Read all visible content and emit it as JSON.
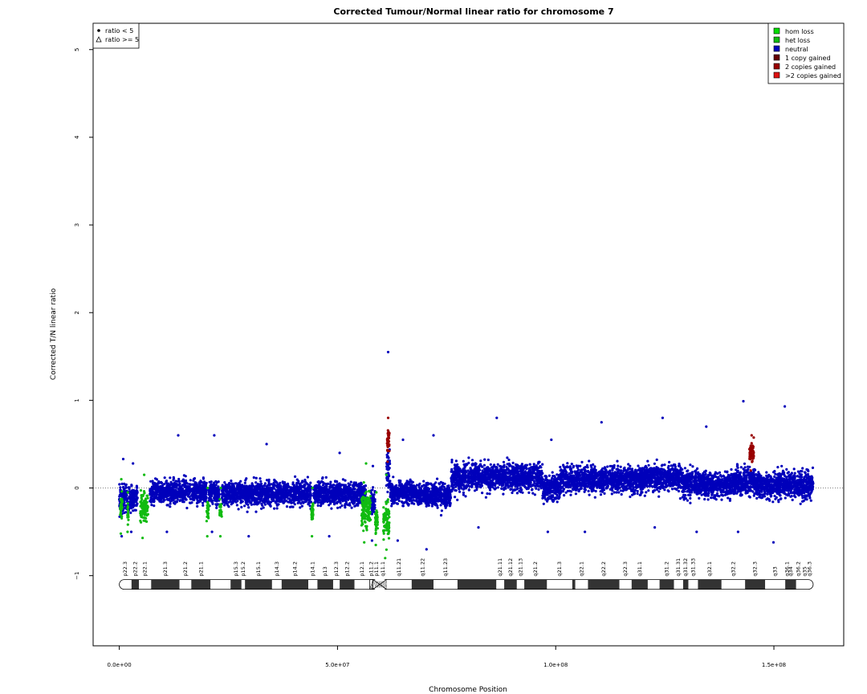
{
  "chart_data": {
    "type": "scatter",
    "title": "Corrected Tumour/Normal linear ratio for chromosome  7",
    "xlabel": "Chromosome Position",
    "ylabel": "Corrected T/N linear ratio",
    "xlim": [
      -6000000,
      166000000
    ],
    "ylim": [
      -1.8,
      5.3
    ],
    "x_ticks": [
      {
        "value": 0,
        "label": "0.0e+00"
      },
      {
        "value": 50000000,
        "label": "5.0e+07"
      },
      {
        "value": 100000000,
        "label": "1.0e+08"
      },
      {
        "value": 150000000,
        "label": "1.5e+08"
      }
    ],
    "y_ticks": [
      {
        "value": -1,
        "label": "−1"
      },
      {
        "value": 0,
        "label": "0"
      },
      {
        "value": 1,
        "label": "1"
      },
      {
        "value": 2,
        "label": "2"
      },
      {
        "value": 3,
        "label": "3"
      },
      {
        "value": 4,
        "label": "4"
      },
      {
        "value": 5,
        "label": "5"
      }
    ],
    "reference_line": 0,
    "colors": {
      "hom_loss": "#00dd00",
      "het_loss": "#11bb11",
      "neutral": "#0000bb",
      "gain1": "#660000",
      "gain2": "#990000",
      "gain_more": "#dd1111"
    },
    "shape_legend": {
      "position": "top-left",
      "items": [
        {
          "symbol": "dot",
          "label": "ratio < 5"
        },
        {
          "symbol": "triangle",
          "label": "ratio >= 5"
        }
      ]
    },
    "color_legend": {
      "position": "top-right",
      "items": [
        {
          "label": "hom loss",
          "color": "#00dd00"
        },
        {
          "label": "het loss",
          "color": "#11bb11"
        },
        {
          "label": "neutral",
          "color": "#0000bb"
        },
        {
          "label": "1 copy gained",
          "color": "#660000"
        },
        {
          "label": "2 copies gained",
          "color": "#990000"
        },
        {
          "label": ">2 copies gained",
          "color": "#dd1111"
        }
      ]
    },
    "series": [
      {
        "name": "neutral",
        "color": "#0000bb",
        "segments": [
          {
            "x0": 0,
            "x1": 1800000,
            "mean": -0.13,
            "sd": 0.14,
            "min": -0.55,
            "max": 0.33
          },
          {
            "x0": 2100000,
            "x1": 4200000,
            "mean": -0.12,
            "sd": 0.13,
            "min": -0.5,
            "max": 0.28
          },
          {
            "x0": 7000000,
            "x1": 20000000,
            "mean": -0.04,
            "sd": 0.13,
            "min": -0.5,
            "max": 0.6
          },
          {
            "x0": 20500000,
            "x1": 23000000,
            "mean": -0.06,
            "sd": 0.13,
            "min": -0.5,
            "max": 0.6
          },
          {
            "x0": 23500000,
            "x1": 44000000,
            "mean": -0.06,
            "sd": 0.13,
            "min": -0.55,
            "max": 0.5
          },
          {
            "x0": 44500000,
            "x1": 56500000,
            "mean": -0.06,
            "sd": 0.13,
            "min": -0.55,
            "max": 0.4
          },
          {
            "x0": 57600000,
            "x1": 58600000,
            "mean": -0.15,
            "sd": 0.15,
            "min": -0.6,
            "max": 0.25
          },
          {
            "x0": 61200000,
            "x1": 62000000,
            "mean": 0.2,
            "sd": 0.25,
            "min": -0.3,
            "max": 1.55
          },
          {
            "x0": 62000000,
            "x1": 68000000,
            "mean": -0.05,
            "sd": 0.13,
            "min": -0.6,
            "max": 0.55
          },
          {
            "x0": 68000000,
            "x1": 76000000,
            "mean": -0.08,
            "sd": 0.13,
            "min": -0.7,
            "max": 0.6
          },
          {
            "x0": 76000000,
            "x1": 97000000,
            "mean": 0.13,
            "sd": 0.15,
            "min": -0.45,
            "max": 0.8
          },
          {
            "x0": 97000000,
            "x1": 101000000,
            "mean": 0.0,
            "sd": 0.14,
            "min": -0.5,
            "max": 0.55
          },
          {
            "x0": 101000000,
            "x1": 120000000,
            "mean": 0.1,
            "sd": 0.14,
            "min": -0.5,
            "max": 0.75
          },
          {
            "x0": 120000000,
            "x1": 129000000,
            "mean": 0.12,
            "sd": 0.14,
            "min": -0.45,
            "max": 0.8
          },
          {
            "x0": 129000000,
            "x1": 140000000,
            "mean": 0.04,
            "sd": 0.14,
            "min": -0.5,
            "max": 0.7
          },
          {
            "x0": 140000000,
            "x1": 146000000,
            "mean": 0.08,
            "sd": 0.15,
            "min": -0.5,
            "max": 0.99
          },
          {
            "x0": 146000000,
            "x1": 159000000,
            "mean": 0.03,
            "sd": 0.14,
            "min": -0.62,
            "max": 0.93
          }
        ]
      },
      {
        "name": "het loss",
        "color": "#11bb11",
        "segments": [
          {
            "x0": 200000,
            "x1": 700000,
            "mean": -0.2,
            "sd": 0.15,
            "min": -0.52,
            "max": 0.1
          },
          {
            "x0": 1800000,
            "x1": 2100000,
            "mean": -0.3,
            "sd": 0.1,
            "min": -0.5,
            "max": -0.05
          },
          {
            "x0": 4800000,
            "x1": 6600000,
            "mean": -0.23,
            "sd": 0.17,
            "min": -0.57,
            "max": 0.15
          },
          {
            "x0": 20000000,
            "x1": 20500000,
            "mean": -0.25,
            "sd": 0.12,
            "min": -0.55,
            "max": 0.0
          },
          {
            "x0": 23000000,
            "x1": 23500000,
            "mean": -0.25,
            "sd": 0.12,
            "min": -0.55,
            "max": 0.0
          },
          {
            "x0": 44000000,
            "x1": 44500000,
            "mean": -0.25,
            "sd": 0.12,
            "min": -0.55,
            "max": 0.0
          },
          {
            "x0": 55500000,
            "x1": 57600000,
            "mean": -0.25,
            "sd": 0.2,
            "min": -0.62,
            "max": 0.28
          },
          {
            "x0": 58600000,
            "x1": 59200000,
            "mean": -0.35,
            "sd": 0.15,
            "min": -0.65,
            "max": -0.05
          },
          {
            "x0": 60500000,
            "x1": 61900000,
            "mean": -0.38,
            "sd": 0.2,
            "min": -0.8,
            "max": 0.15
          }
        ]
      },
      {
        "name": "2 copies gained",
        "color": "#990000",
        "segments": [
          {
            "x0": 61300000,
            "x1": 61900000,
            "mean": 0.55,
            "sd": 0.12,
            "min": 0.3,
            "max": 0.8
          },
          {
            "x0": 144400000,
            "x1": 145400000,
            "mean": 0.4,
            "sd": 0.1,
            "min": 0.2,
            "max": 0.6
          }
        ]
      }
    ],
    "ideogram": {
      "y": -1.1,
      "x_end": 159000000,
      "centromere": 59700000,
      "bands": [
        {
          "name": "p22.3",
          "start": 0,
          "end": 2800000,
          "stain": "gneg"
        },
        {
          "name": "p22.2",
          "start": 2800000,
          "end": 4500000,
          "stain": "gpos"
        },
        {
          "name": "p22.1",
          "start": 4500000,
          "end": 7300000,
          "stain": "gneg"
        },
        {
          "name": "p21.3",
          "start": 7300000,
          "end": 13800000,
          "stain": "gpos"
        },
        {
          "name": "p21.2",
          "start": 13800000,
          "end": 16500000,
          "stain": "gneg"
        },
        {
          "name": "p21.1",
          "start": 16500000,
          "end": 20900000,
          "stain": "gpos"
        },
        {
          "name": "",
          "start": 20900000,
          "end": 25500000,
          "stain": "gneg"
        },
        {
          "name": "p15.3",
          "start": 25500000,
          "end": 28000000,
          "stain": "gpos"
        },
        {
          "name": "p15.2",
          "start": 28000000,
          "end": 28800000,
          "stain": "gneg"
        },
        {
          "name": "p15.1",
          "start": 28800000,
          "end": 35000000,
          "stain": "gpos"
        },
        {
          "name": "p14.3",
          "start": 35000000,
          "end": 37200000,
          "stain": "gneg"
        },
        {
          "name": "p14.2",
          "start": 37200000,
          "end": 43300000,
          "stain": "gpos"
        },
        {
          "name": "p14.1",
          "start": 43300000,
          "end": 45400000,
          "stain": "gneg"
        },
        {
          "name": "p13",
          "start": 45400000,
          "end": 49000000,
          "stain": "gpos"
        },
        {
          "name": "p12.3",
          "start": 49000000,
          "end": 50500000,
          "stain": "gneg"
        },
        {
          "name": "p12.2",
          "start": 50500000,
          "end": 53900000,
          "stain": "gpos"
        },
        {
          "name": "p12.1",
          "start": 53900000,
          "end": 57400000,
          "stain": "gneg"
        },
        {
          "name": "p11.2",
          "start": 57400000,
          "end": 58100000,
          "stain": "stalk"
        },
        {
          "name": "p11.1",
          "start": 58100000,
          "end": 59700000,
          "stain": "acen"
        },
        {
          "name": "q11.1",
          "start": 59700000,
          "end": 61200000,
          "stain": "acen"
        },
        {
          "name": "q11.21",
          "start": 61200000,
          "end": 67000000,
          "stain": "gneg"
        },
        {
          "name": "q11.22",
          "start": 67000000,
          "end": 72000000,
          "stain": "gpos"
        },
        {
          "name": "q11.23",
          "start": 72000000,
          "end": 77500000,
          "stain": "gneg"
        },
        {
          "name": "",
          "start": 77500000,
          "end": 86400000,
          "stain": "gpos"
        },
        {
          "name": "q21.11",
          "start": 86400000,
          "end": 88200000,
          "stain": "gneg"
        },
        {
          "name": "q21.12",
          "start": 88200000,
          "end": 91100000,
          "stain": "gpos"
        },
        {
          "name": "q21.13",
          "start": 91100000,
          "end": 92800000,
          "stain": "gneg"
        },
        {
          "name": "q21.2",
          "start": 92800000,
          "end": 98000000,
          "stain": "gpos"
        },
        {
          "name": "q21.3",
          "start": 98000000,
          "end": 103800000,
          "stain": "gneg"
        },
        {
          "name": "",
          "start": 103800000,
          "end": 104500000,
          "stain": "gpos"
        },
        {
          "name": "q22.1",
          "start": 104500000,
          "end": 107400000,
          "stain": "gneg"
        },
        {
          "name": "q22.2",
          "start": 107400000,
          "end": 114600000,
          "stain": "gpos"
        },
        {
          "name": "q22.3",
          "start": 114600000,
          "end": 117400000,
          "stain": "gneg"
        },
        {
          "name": "q31.1",
          "start": 117400000,
          "end": 121100000,
          "stain": "gpos"
        },
        {
          "name": "",
          "start": 121100000,
          "end": 123800000,
          "stain": "gneg"
        },
        {
          "name": "q31.2",
          "start": 123800000,
          "end": 127100000,
          "stain": "gpos"
        },
        {
          "name": "q31.31",
          "start": 127100000,
          "end": 129200000,
          "stain": "gneg"
        },
        {
          "name": "q31.32",
          "start": 129200000,
          "end": 130400000,
          "stain": "gpos"
        },
        {
          "name": "q31.33",
          "start": 130400000,
          "end": 132600000,
          "stain": "gneg"
        },
        {
          "name": "q32.1",
          "start": 132600000,
          "end": 138000000,
          "stain": "gpos"
        },
        {
          "name": "q32.2",
          "start": 138000000,
          "end": 143400000,
          "stain": "gneg"
        },
        {
          "name": "q32.3",
          "start": 143400000,
          "end": 148000000,
          "stain": "gpos"
        },
        {
          "name": "q33",
          "start": 148000000,
          "end": 152600000,
          "stain": "gneg"
        },
        {
          "name": "q34",
          "start": 152600000,
          "end": 155100000,
          "stain": "gpos"
        },
        {
          "name": "q35",
          "start": 155100000,
          "end": 159000000,
          "stain": "gneg"
        },
        {
          "name": "q36.1",
          "start": 0,
          "end": 0,
          "stain": "none"
        },
        {
          "name": "q36.2",
          "start": 0,
          "end": 0,
          "stain": "none"
        },
        {
          "name": "q36.3",
          "start": 0,
          "end": 0,
          "stain": "none"
        }
      ]
    }
  }
}
